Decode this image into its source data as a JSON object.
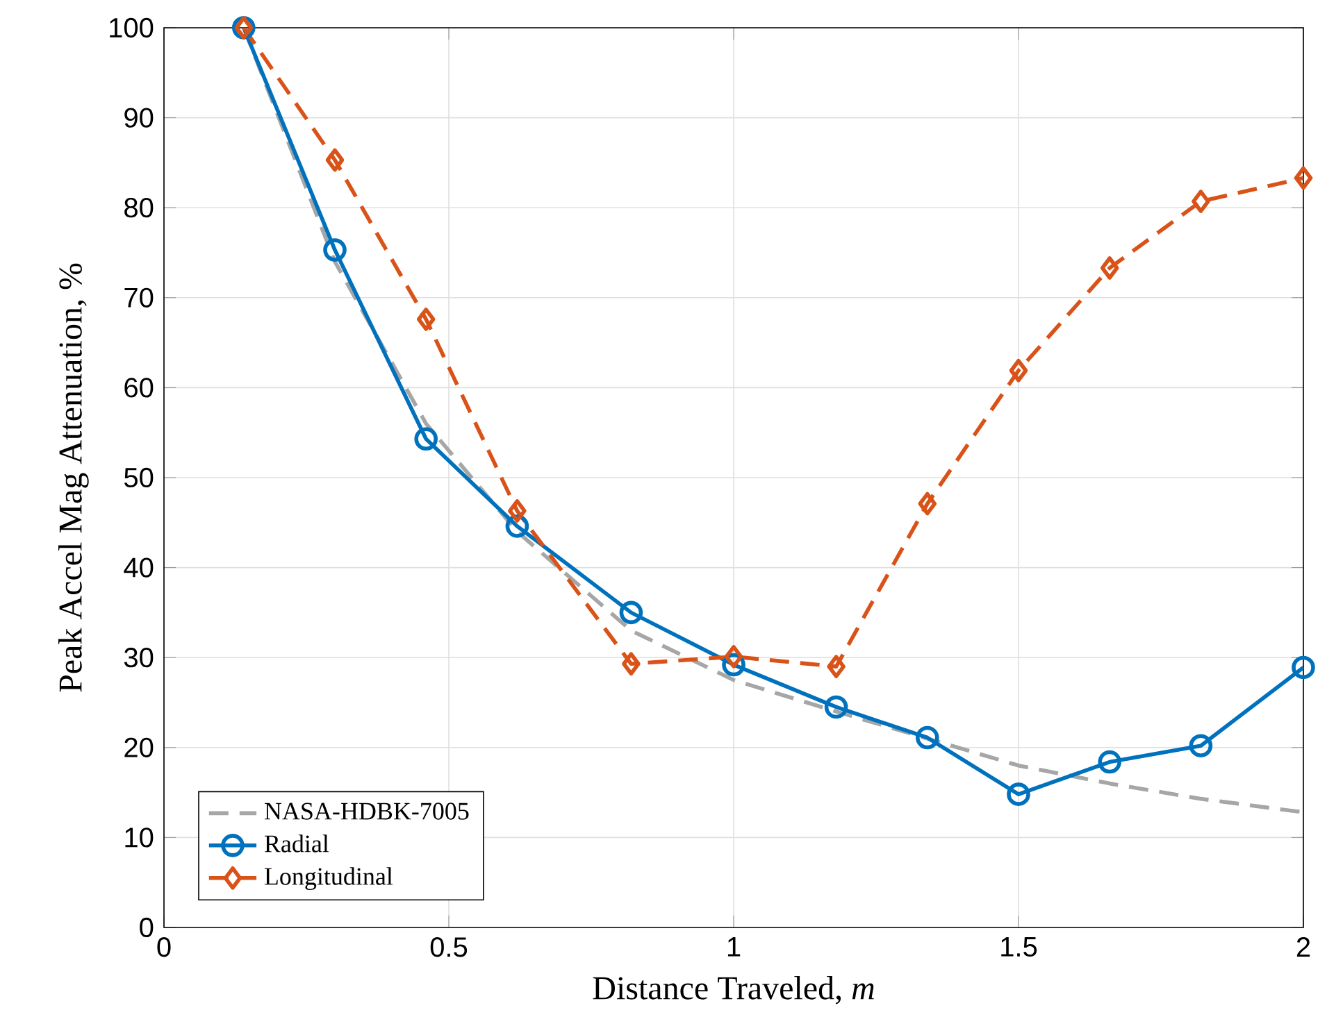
{
  "chart_data": {
    "type": "line",
    "xlabel": "Distance Traveled, *m*",
    "ylabel": "Peak Accel Mag Attenuation, %",
    "x": [
      0.14,
      0.3,
      0.46,
      0.62,
      0.82,
      1.0,
      1.18,
      1.34,
      1.5,
      1.66,
      1.82,
      2.0
    ],
    "series": [
      {
        "name": "NASA-HDBK-7005",
        "color": "#a6a6a6",
        "marker": "none",
        "line_style": "dashed",
        "values": [
          100,
          74,
          56,
          44,
          33,
          27.5,
          24,
          21,
          18,
          16,
          14.3,
          12.8
        ]
      },
      {
        "name": "Radial",
        "color": "#0072bd",
        "marker": "circle",
        "line_style": "solid",
        "values": [
          100,
          75.3,
          54.3,
          44.6,
          35.0,
          29.2,
          24.5,
          21.1,
          14.8,
          18.4,
          20.2,
          28.9
        ]
      },
      {
        "name": "Longitudinal",
        "color": "#d95319",
        "marker": "diamond",
        "line_style": "dashed",
        "values": [
          100,
          85.3,
          67.6,
          46.3,
          29.3,
          30.1,
          29.0,
          47.1,
          61.9,
          73.3,
          80.7,
          83.3
        ]
      }
    ],
    "xlim": [
      0,
      2
    ],
    "ylim": [
      0,
      100
    ],
    "xticks": [
      0,
      0.5,
      1,
      1.5,
      2
    ],
    "yticks": [
      0,
      10,
      20,
      30,
      40,
      50,
      60,
      70,
      80,
      90,
      100
    ],
    "grid": true,
    "legend": "bottom left"
  }
}
